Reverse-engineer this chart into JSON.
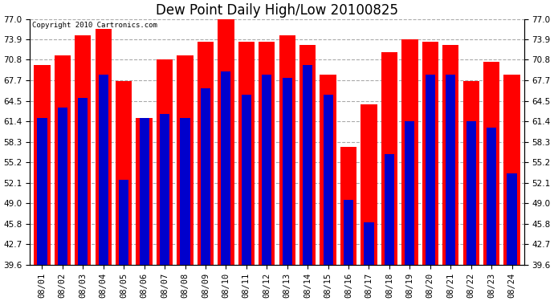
{
  "title": "Dew Point Daily High/Low 20100825",
  "copyright": "Copyright 2010 Cartronics.com",
  "dates": [
    "08/01",
    "08/02",
    "08/03",
    "08/04",
    "08/05",
    "08/06",
    "08/07",
    "08/08",
    "08/09",
    "08/10",
    "08/11",
    "08/12",
    "08/13",
    "08/14",
    "08/15",
    "08/16",
    "08/17",
    "08/18",
    "08/19",
    "08/20",
    "08/21",
    "08/22",
    "08/23",
    "08/24"
  ],
  "highs": [
    70.0,
    71.5,
    74.5,
    75.5,
    67.5,
    62.0,
    70.8,
    71.5,
    73.5,
    77.0,
    73.5,
    73.5,
    74.5,
    73.0,
    68.5,
    57.5,
    64.0,
    72.0,
    73.9,
    73.5,
    73.0,
    67.5,
    70.5,
    68.5
  ],
  "lows": [
    62.0,
    63.5,
    65.0,
    68.5,
    52.5,
    62.0,
    62.5,
    62.0,
    66.5,
    69.0,
    65.5,
    68.5,
    68.0,
    70.0,
    65.5,
    49.5,
    46.0,
    56.5,
    61.5,
    68.5,
    68.5,
    61.5,
    60.5,
    53.5
  ],
  "high_color": "#ff0000",
  "low_color": "#0000cc",
  "bg_color": "#ffffff",
  "plot_bg_color": "#ffffff",
  "grid_color": "#aaaaaa",
  "ymin": 39.6,
  "ymax": 77.0,
  "yticks": [
    39.6,
    42.7,
    45.8,
    49.0,
    52.1,
    55.2,
    58.3,
    61.4,
    64.5,
    67.7,
    70.8,
    73.9,
    77.0
  ],
  "bar_width": 0.8,
  "title_fontsize": 12,
  "tick_fontsize": 7.5,
  "copyright_fontsize": 6.5
}
